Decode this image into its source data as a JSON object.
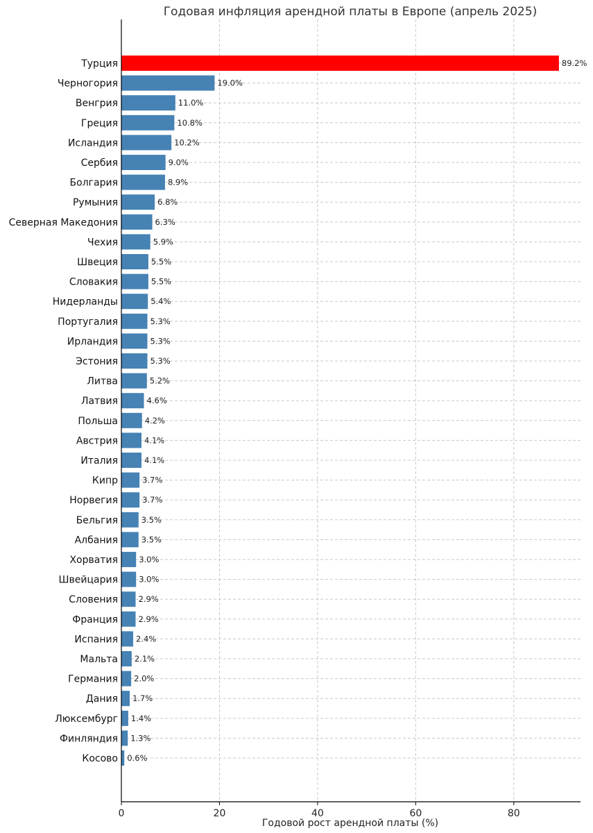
{
  "chart_data": {
    "type": "bar",
    "orientation": "horizontal",
    "title": "Годовая инфляция арендной платы в Европе (апрель 2025)",
    "xlabel": "Годовой рост арендной платы (%)",
    "ylabel": "",
    "xlim": [
      0,
      93.6
    ],
    "xticks": [
      0,
      20,
      40,
      60,
      80
    ],
    "grid": true,
    "value_label_suffix": "%",
    "colors": {
      "highlight": "#ff0000",
      "default": "#4682b4"
    },
    "highlight_category": "Турция",
    "categories": [
      "Турция",
      "Черногория",
      "Венгрия",
      "Греция",
      "Исландия",
      "Сербия",
      "Болгария",
      "Румыния",
      "Северная Македония",
      "Чехия",
      "Швеция",
      "Словакия",
      "Нидерланды",
      "Португалия",
      "Ирландия",
      "Эстония",
      "Литва",
      "Латвия",
      "Польша",
      "Австрия",
      "Италия",
      "Кипр",
      "Норвегия",
      "Бельгия",
      "Албания",
      "Хорватия",
      "Швейцария",
      "Словения",
      "Франция",
      "Испания",
      "Мальта",
      "Германия",
      "Дания",
      "Люксембург",
      "Финляндия",
      "Косово"
    ],
    "values": [
      89.2,
      19.0,
      11.0,
      10.8,
      10.2,
      9.0,
      8.9,
      6.8,
      6.3,
      5.9,
      5.5,
      5.5,
      5.4,
      5.3,
      5.3,
      5.3,
      5.2,
      4.6,
      4.2,
      4.1,
      4.1,
      3.7,
      3.7,
      3.5,
      3.5,
      3.0,
      3.0,
      2.9,
      2.9,
      2.4,
      2.1,
      2.0,
      1.7,
      1.4,
      1.3,
      0.6
    ]
  }
}
